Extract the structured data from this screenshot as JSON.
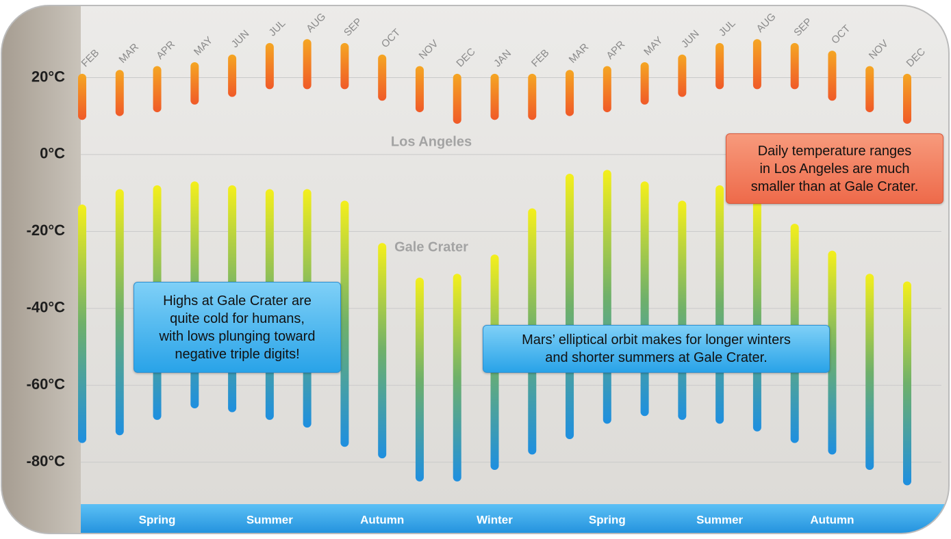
{
  "chart_data": {
    "type": "range_bar",
    "categories": [
      "FEB",
      "MAR",
      "APR",
      "MAY",
      "JUN",
      "JUL",
      "AUG",
      "SEP",
      "OCT",
      "NOV",
      "DEC",
      "JAN",
      "FEB",
      "MAR",
      "APR",
      "MAY",
      "JUN",
      "JUL",
      "AUG",
      "SEP",
      "OCT",
      "NOV",
      "DEC"
    ],
    "series": [
      {
        "name": "Los Angeles",
        "color": [
          "#f5a623",
          "#f05a28"
        ],
        "high": [
          21,
          22,
          23,
          24,
          26,
          29,
          30,
          29,
          26,
          23,
          21,
          21,
          21,
          22,
          23,
          24,
          26,
          29,
          30,
          29,
          27,
          23,
          21
        ],
        "low": [
          9,
          10,
          11,
          13,
          15,
          17,
          17,
          17,
          14,
          11,
          8,
          9,
          9,
          10,
          11,
          13,
          15,
          17,
          17,
          17,
          14,
          11,
          8
        ]
      },
      {
        "name": "Gale Crater",
        "color": [
          "#f4ef1c",
          "#6fb06a",
          "#1e8fe0"
        ],
        "high": [
          -13,
          -9,
          -8,
          -7,
          -8,
          -9,
          -9,
          -12,
          -23,
          -32,
          -31,
          -26,
          -14,
          -5,
          -4,
          -7,
          -12,
          -8,
          -12,
          -18,
          -25,
          -31,
          -33
        ],
        "low": [
          -75,
          -73,
          -69,
          -66,
          -67,
          -69,
          -71,
          -76,
          -79,
          -85,
          -85,
          -82,
          -78,
          -74,
          -70,
          -68,
          -69,
          -70,
          -72,
          -75,
          -78,
          -82,
          -86
        ]
      }
    ],
    "ylim": [
      -90,
      40
    ],
    "yticks": [
      {
        "value": 20,
        "label": "20°C"
      },
      {
        "value": 0,
        "label": "0°C"
      },
      {
        "value": -20,
        "label": "-20°C"
      },
      {
        "value": -40,
        "label": "-40°C"
      },
      {
        "value": -60,
        "label": "-60°C"
      },
      {
        "value": -80,
        "label": "-80°C"
      }
    ],
    "grid": true,
    "seasons": [
      "Spring",
      "Summer",
      "Autumn",
      "Winter",
      "Spring",
      "Summer",
      "Autumn"
    ],
    "annotations": [
      {
        "lines": [
          "Highs at Gale Crater are",
          "quite cold for humans,",
          "with lows plunging toward",
          "negative triple digits!"
        ]
      },
      {
        "lines": [
          "Mars’ elliptical orbit makes for longer winters",
          "and shorter summers at Gale Crater."
        ]
      },
      {
        "lines": [
          "Daily temperature ranges",
          "in Los Angeles are much",
          "smaller than at Gale Crater."
        ]
      }
    ]
  }
}
